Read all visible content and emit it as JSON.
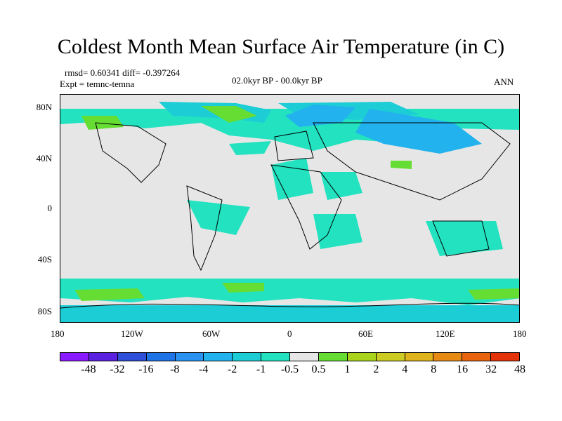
{
  "title": "Coldest Month Mean Surface Air Temperature (in C)",
  "stats": {
    "rmsd": "rmsd= 0.60341 diff= -0.397264",
    "expt": "Expt = temnc-temna",
    "period": "02.0kyr BP - 00.0kyr BP",
    "season": "ANN"
  },
  "lon_ticks": [
    "180",
    "120W",
    "60W",
    "0",
    "60E",
    "120E",
    "180"
  ],
  "lat_ticks": [
    "80N",
    "40N",
    "0",
    "40S",
    "80S"
  ],
  "colorbar": {
    "colors": [
      "#8a1aff",
      "#5a22e0",
      "#2f4fd8",
      "#1e73e6",
      "#2a92f0",
      "#22b2ee",
      "#1dcdd6",
      "#22e2c0",
      "#e6e6e6",
      "#66dd33",
      "#aad41c",
      "#cccc22",
      "#e0b41c",
      "#e68a14",
      "#e8640e",
      "#e4330a"
    ],
    "labels": [
      "-48",
      "-32",
      "-16",
      "-8",
      "-4",
      "-2",
      "-1",
      "-0.5",
      "0.5",
      "1",
      "2",
      "4",
      "8",
      "16",
      "32",
      "48"
    ]
  }
}
